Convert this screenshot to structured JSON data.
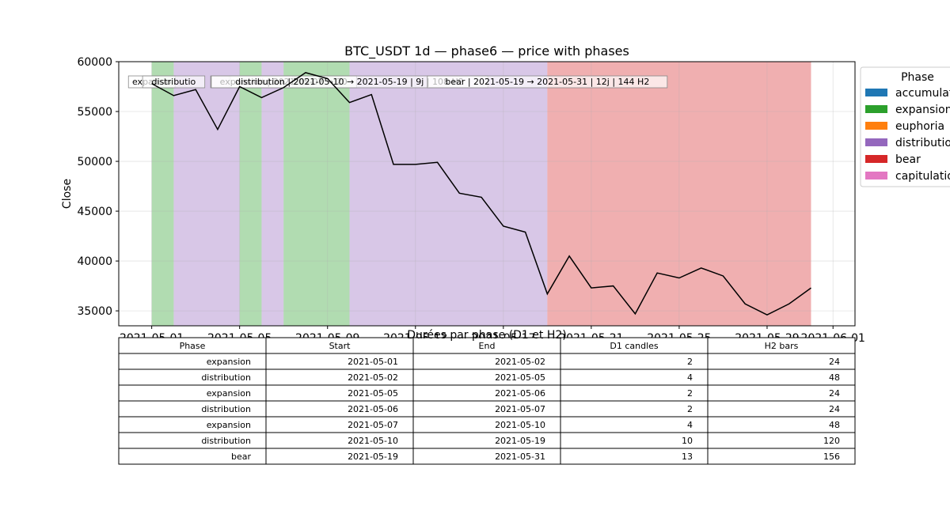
{
  "chart_data": {
    "type": "line",
    "title": "BTC_USDT 1d — phase6 — price with phases",
    "xlabel": "",
    "ylabel": "Close",
    "xlim": [
      "2021-05-01",
      "2021-06-02"
    ],
    "ylim": [
      33500,
      60000
    ],
    "x_ticks": [
      "2021-05-01",
      "2021-05-05",
      "2021-05-09",
      "2021-05-13",
      "2021-05-17",
      "2021-05-21",
      "2021-05-25",
      "2021-05-29",
      "2021-06-01"
    ],
    "y_ticks": [
      35000,
      40000,
      45000,
      50000,
      55000,
      60000
    ],
    "grid": true,
    "series": [
      {
        "color": "#000000",
        "x": [
          "2021-05-01",
          "2021-05-02",
          "2021-05-03",
          "2021-05-04",
          "2021-05-05",
          "2021-05-06",
          "2021-05-07",
          "2021-05-08",
          "2021-05-09",
          "2021-05-10",
          "2021-05-11",
          "2021-05-12",
          "2021-05-13",
          "2021-05-14",
          "2021-05-15",
          "2021-05-16",
          "2021-05-17",
          "2021-05-18",
          "2021-05-19",
          "2021-05-20",
          "2021-05-21",
          "2021-05-22",
          "2021-05-23",
          "2021-05-24",
          "2021-05-25",
          "2021-05-26",
          "2021-05-27",
          "2021-05-28",
          "2021-05-29",
          "2021-05-30",
          "2021-05-31"
        ],
        "y": [
          57800,
          56600,
          57200,
          53200,
          57500,
          56400,
          57400,
          58900,
          58300,
          55900,
          56700,
          49700,
          49700,
          49900,
          46800,
          46400,
          43500,
          42900,
          36700,
          40500,
          37300,
          37500,
          34700,
          38800,
          38300,
          39300,
          38500,
          35700,
          34600,
          35700,
          37300
        ]
      }
    ],
    "phases": [
      {
        "name": "expansion",
        "start": "2021-05-01",
        "end": "2021-05-02",
        "color": "#2ca02c"
      },
      {
        "name": "distribution",
        "start": "2021-05-02",
        "end": "2021-05-05",
        "color": "#9467bd"
      },
      {
        "name": "expansion",
        "start": "2021-05-05",
        "end": "2021-05-06",
        "color": "#2ca02c"
      },
      {
        "name": "distribution",
        "start": "2021-05-06",
        "end": "2021-05-07",
        "color": "#9467bd"
      },
      {
        "name": "expansion",
        "start": "2021-05-07",
        "end": "2021-05-10",
        "color": "#2ca02c"
      },
      {
        "name": "distribution",
        "start": "2021-05-10",
        "end": "2021-05-19",
        "color": "#9467bd"
      },
      {
        "name": "bear",
        "start": "2021-05-19",
        "end": "2021-05-31",
        "color": "#d62728"
      }
    ],
    "annotations": [
      {
        "text": "expansio",
        "x": "2021-05-01"
      },
      {
        "text": "distributio",
        "x": "2021-05-02"
      },
      {
        "text": "exp",
        "x": "2021-05-05"
      },
      {
        "text": "distributio",
        "x": "2021-05-06"
      },
      {
        "text": "expansion | 2021-05-07 → 20",
        "x": "2021-05-07"
      },
      {
        "text": "distribution | 2021-05-10 → 2021-05-19 | 9j | 108 H2",
        "x": "2021-05-10"
      },
      {
        "text": "bear | 2021-05-19 → 2021-05-31 | 12j | 144 H2",
        "x": "2021-05-19"
      }
    ],
    "legend": {
      "title": "Phase",
      "position": "upper-right-outside",
      "items": [
        {
          "label": "accumulat",
          "color": "#1f77b4"
        },
        {
          "label": "expansion",
          "color": "#2ca02c"
        },
        {
          "label": "euphoria",
          "color": "#ff7f0e"
        },
        {
          "label": "distributio",
          "color": "#9467bd"
        },
        {
          "label": "bear",
          "color": "#d62728"
        },
        {
          "label": "capitulatio",
          "color": "#e377c2"
        }
      ]
    },
    "table": {
      "title": "Durées par phase (D1 et H2)",
      "columns": [
        "Phase",
        "Start",
        "End",
        "D1 candles",
        "H2 bars"
      ],
      "rows": [
        [
          "expansion",
          "2021-05-01",
          "2021-05-02",
          "2",
          "24"
        ],
        [
          "distribution",
          "2021-05-02",
          "2021-05-05",
          "4",
          "48"
        ],
        [
          "expansion",
          "2021-05-05",
          "2021-05-06",
          "2",
          "24"
        ],
        [
          "distribution",
          "2021-05-06",
          "2021-05-07",
          "2",
          "24"
        ],
        [
          "expansion",
          "2021-05-07",
          "2021-05-10",
          "4",
          "48"
        ],
        [
          "distribution",
          "2021-05-10",
          "2021-05-19",
          "10",
          "120"
        ],
        [
          "bear",
          "2021-05-19",
          "2021-05-31",
          "13",
          "156"
        ]
      ]
    }
  }
}
